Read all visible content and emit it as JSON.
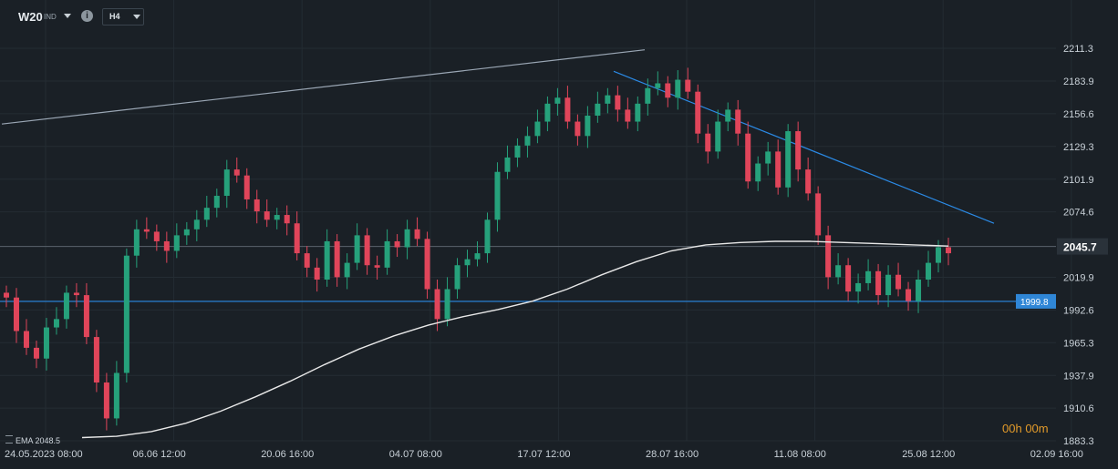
{
  "toolbar": {
    "symbol": "W20",
    "exchange": "IND",
    "info_icon": "info-icon",
    "timeframe": "H4"
  },
  "countdown": {
    "hours": "00",
    "h": "h",
    "minutes": "00",
    "m": "m"
  },
  "ema_label": "EMA 2048.5",
  "colors": {
    "background": "#1a2026",
    "grid": "#242c33",
    "up": "#26a17b",
    "down": "#e0455a",
    "trendline_blue": "#2b8ae6",
    "trendline_gray": "#9aa6b4",
    "ema": "#e8e8e8",
    "current_price_line": "#59626b",
    "level_badge": "#2f86d6"
  },
  "chart_data": {
    "type": "candlestick",
    "ylim": [
      1883.3,
      2211.3
    ],
    "y_ticks": [
      2211.3,
      2183.9,
      2156.6,
      2129.3,
      2101.9,
      2074.6,
      2045.7,
      2019.9,
      1992.6,
      1965.3,
      1937.9,
      1910.6,
      1883.3
    ],
    "x_labels": [
      "24.05.2023  08:00",
      "06.06  12:00",
      "20.06  16:00",
      "04.07  08:00",
      "17.07  12:00",
      "28.07  16:00",
      "11.08  08:00",
      "25.08  12:00",
      "02.09  16:00"
    ],
    "current_price": 2045.7,
    "horizontal_level": 1999.8,
    "ema_value": 2048.5,
    "closes": [
      2003,
      1975,
      1961,
      1952,
      1978,
      1985,
      2007,
      2005,
      1970,
      1932,
      1902,
      1940,
      2038,
      2060,
      2058,
      2050,
      2042,
      2055,
      2060,
      2068,
      2078,
      2088,
      2110,
      2105,
      2085,
      2075,
      2068,
      2072,
      2065,
      2040,
      2028,
      2018,
      2050,
      2020,
      2032,
      2055,
      2030,
      2028,
      2050,
      2045,
      2060,
      2052,
      2010,
      1985,
      2010,
      2030,
      2035,
      2040,
      2068,
      2108,
      2120,
      2130,
      2138,
      2150,
      2165,
      2170,
      2150,
      2138,
      2155,
      2165,
      2172,
      2160,
      2150,
      2165,
      2178,
      2182,
      2170,
      2185,
      2175,
      2140,
      2125,
      2150,
      2160,
      2140,
      2100,
      2115,
      2125,
      2095,
      2142,
      2110,
      2090,
      2055,
      2020,
      2030,
      2008,
      2015,
      2025,
      2005,
      2022,
      2010,
      2000,
      2018,
      2032,
      2045,
      2040
    ],
    "ema": [
      1886,
      1887,
      1891,
      1898,
      1908,
      1920,
      1933,
      1947,
      1960,
      1971,
      1980,
      1987,
      1993,
      2000,
      2010,
      2022,
      2033,
      2042,
      2047,
      2049,
      2050,
      2050,
      2049,
      2048,
      2047,
      2046
    ],
    "trendlines": [
      {
        "name": "upper",
        "from": [
          "24.05.2023",
          2148
        ],
        "to": [
          "28.07",
          2210
        ]
      },
      {
        "name": "falling",
        "from": [
          "~26.07",
          2192
        ],
        "to": [
          "~02.09",
          2065
        ]
      }
    ]
  }
}
